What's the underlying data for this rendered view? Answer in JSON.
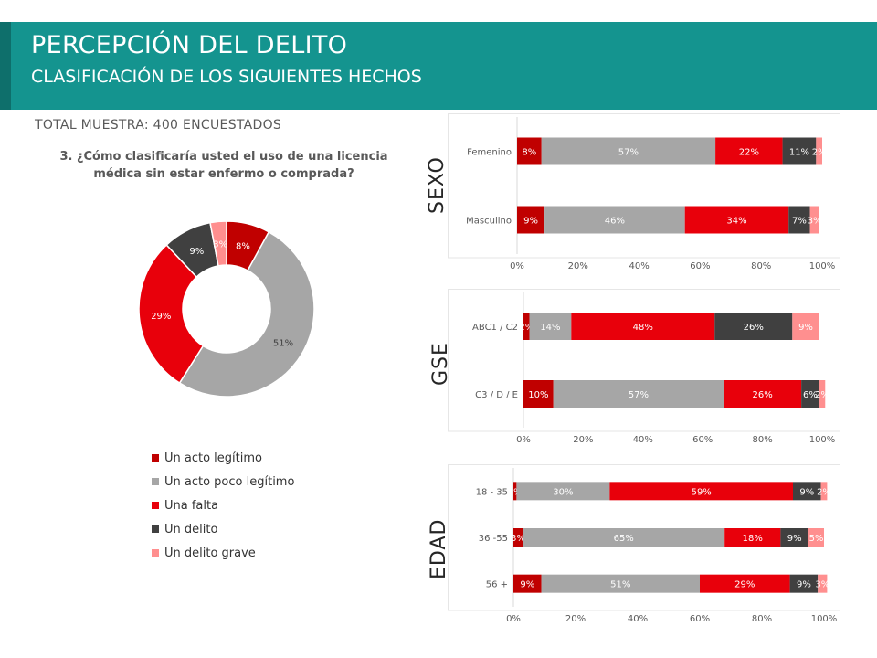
{
  "header": {
    "title": "PERCEPCIÓN DEL DELITO",
    "subtitle": "CLASIFICACIÓN DE LOS SIGUIENTES HECHOS"
  },
  "sample_note": "TOTAL MUESTRA: 400 ENCUESTADOS",
  "question": "3. ¿Cómo clasificaría usted el uso de una licencia médica sin estar enfermo o comprada?",
  "colors": {
    "header_bg": "#14948f",
    "series": [
      "#c00000",
      "#a6a6a6",
      "#e8000b",
      "#404040",
      "#ff8f8f"
    ]
  },
  "legend": [
    {
      "label": "Un acto legítimo"
    },
    {
      "label": "Un acto poco legítimo"
    },
    {
      "label": "Una falta"
    },
    {
      "label": "Un delito"
    },
    {
      "label": "Un delito grave"
    }
  ],
  "group_labels": {
    "sexo": "SEXO",
    "gse": "GSE",
    "edad": "EDAD"
  },
  "chart_data": [
    {
      "type": "pie",
      "title": "3. ¿Cómo clasificaría usted el uso de una licencia médica sin estar enfermo o comprada?",
      "categories": [
        "Un acto legítimo",
        "Un acto poco legítimo",
        "Una falta",
        "Un delito",
        "Un delito grave"
      ],
      "values": [
        8,
        51,
        29,
        9,
        3
      ],
      "labels": [
        "8%",
        "51%",
        "29%",
        "9%",
        "3%"
      ]
    },
    {
      "type": "bar",
      "orientation": "horizontal-stacked",
      "categories": [
        "Femenino",
        "Masculino"
      ],
      "series": [
        {
          "name": "Un acto legítimo",
          "values": [
            8,
            9
          ],
          "labels": [
            "8%",
            "9%"
          ]
        },
        {
          "name": "Un acto poco legítimo",
          "values": [
            57,
            46
          ],
          "labels": [
            "57%",
            "46%"
          ]
        },
        {
          "name": "Una falta",
          "values": [
            22,
            34
          ],
          "labels": [
            "22%",
            "34%"
          ]
        },
        {
          "name": "Un delito",
          "values": [
            11,
            7
          ],
          "labels": [
            "11%",
            "7%"
          ]
        },
        {
          "name": "Un delito grave",
          "values": [
            2,
            3
          ],
          "labels": [
            "2%",
            "3%"
          ]
        }
      ],
      "xlim": [
        0,
        100
      ],
      "ticks": [
        "0%",
        "20%",
        "40%",
        "60%",
        "80%",
        "100%"
      ]
    },
    {
      "type": "bar",
      "orientation": "horizontal-stacked",
      "categories": [
        "ABC1 / C2",
        "C3 / D / E"
      ],
      "series": [
        {
          "name": "Un acto legítimo",
          "values": [
            2,
            10
          ],
          "labels": [
            "2%",
            "10%"
          ]
        },
        {
          "name": "Un acto poco legítimo",
          "values": [
            14,
            57
          ],
          "labels": [
            "14%",
            "57%"
          ]
        },
        {
          "name": "Una falta",
          "values": [
            48,
            26
          ],
          "labels": [
            "48%",
            "26%"
          ]
        },
        {
          "name": "Un delito",
          "values": [
            26,
            6
          ],
          "labels": [
            "26%",
            "6%"
          ]
        },
        {
          "name": "Un delito grave",
          "values": [
            9,
            2
          ],
          "labels": [
            "9%",
            "2%"
          ]
        }
      ],
      "xlim": [
        0,
        100
      ],
      "ticks": [
        "0%",
        "20%",
        "40%",
        "60%",
        "80%",
        "100%"
      ]
    },
    {
      "type": "bar",
      "orientation": "horizontal-stacked",
      "categories": [
        "18 - 35",
        "36 -55",
        "56 +"
      ],
      "series": [
        {
          "name": "Un acto legítimo",
          "values": [
            1,
            3,
            9
          ],
          "labels": [
            "1%",
            "3%",
            "9%"
          ]
        },
        {
          "name": "Un acto poco legítimo",
          "values": [
            30,
            65,
            51
          ],
          "labels": [
            "30%",
            "65%",
            "51%"
          ]
        },
        {
          "name": "Una falta",
          "values": [
            59,
            18,
            29
          ],
          "labels": [
            "59%",
            "18%",
            "29%"
          ]
        },
        {
          "name": "Un delito",
          "values": [
            9,
            9,
            9
          ],
          "labels": [
            "9%",
            "9%",
            "9%"
          ]
        },
        {
          "name": "Un delito grave",
          "values": [
            2,
            5,
            3
          ],
          "labels": [
            "2%",
            "5%",
            "3%"
          ]
        }
      ],
      "xlim": [
        0,
        100
      ],
      "ticks": [
        "0%",
        "20%",
        "40%",
        "60%",
        "80%",
        "100%"
      ]
    }
  ]
}
